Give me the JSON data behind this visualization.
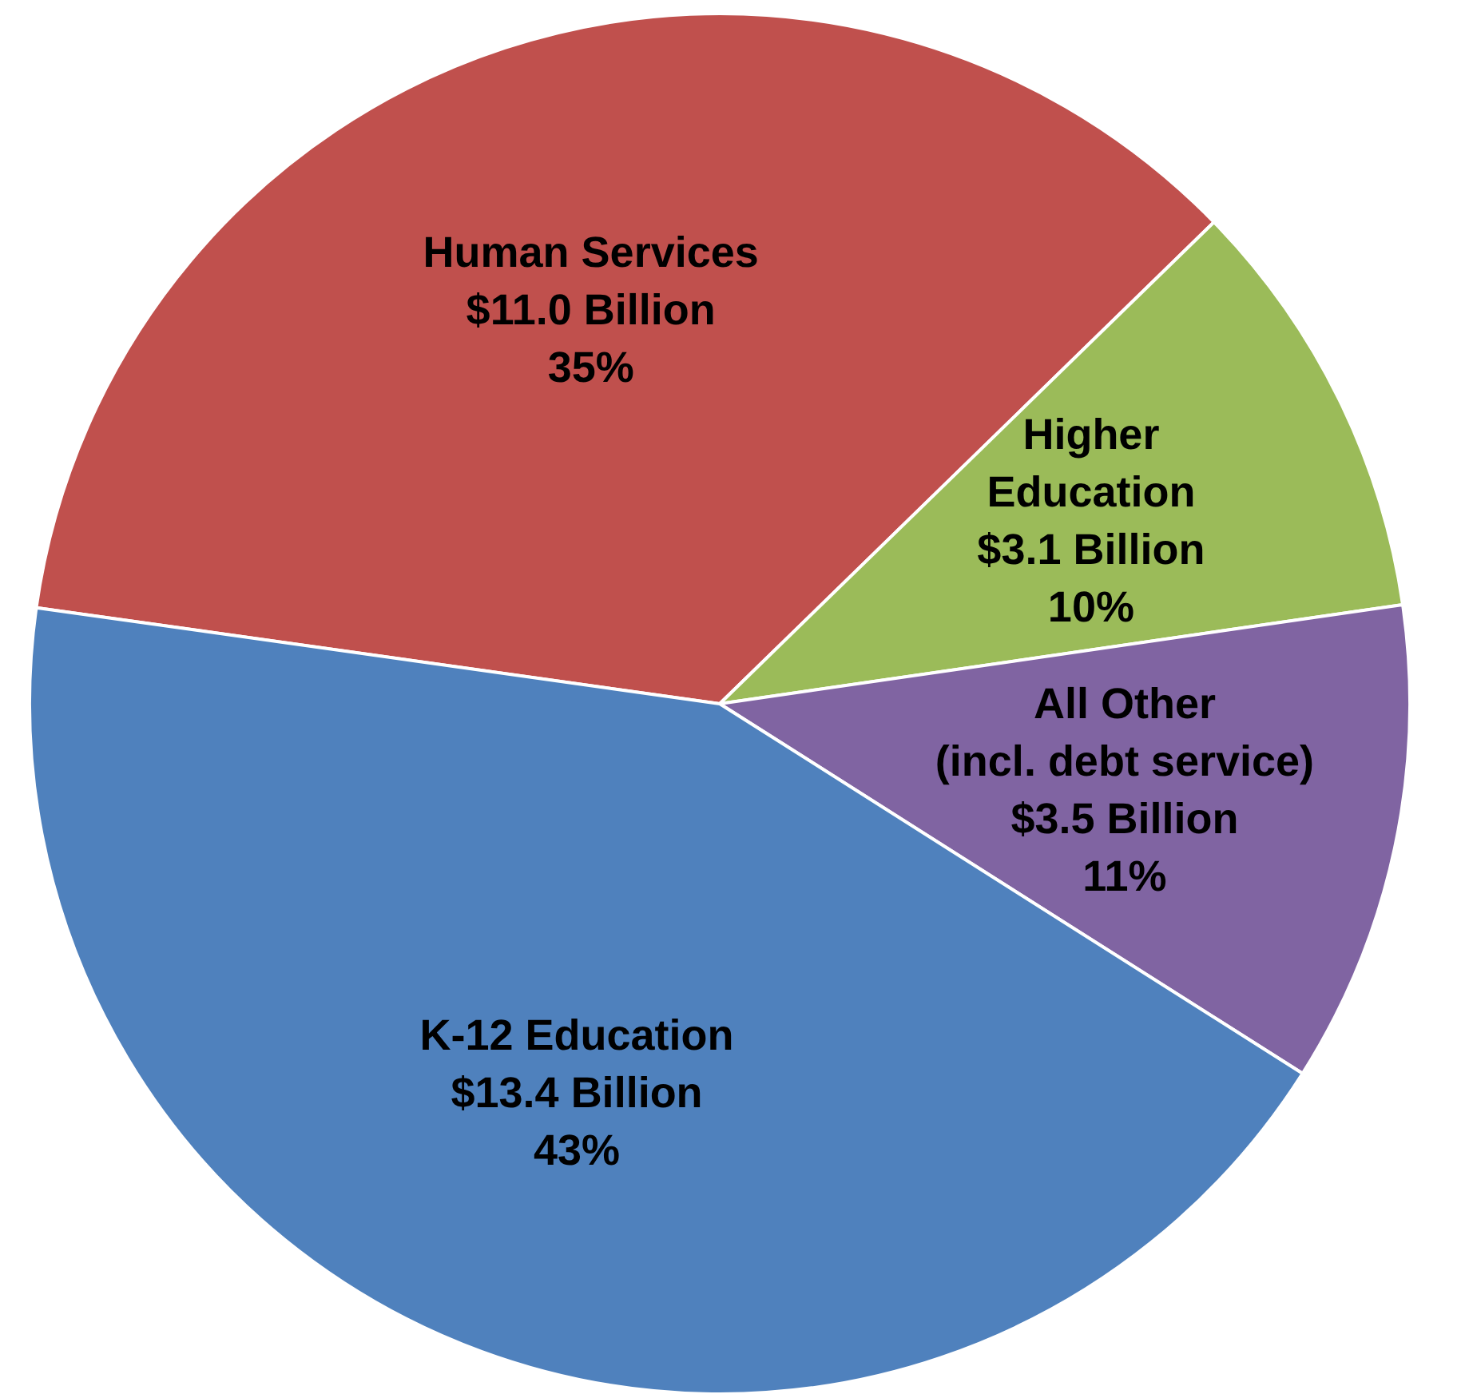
{
  "chart_data": {
    "type": "pie",
    "categories": [
      "Human Services",
      "Higher\nEducation",
      "All Other\n(incl. debt service)",
      "K-12 Education"
    ],
    "values": [
      11.0,
      3.1,
      3.5,
      13.4
    ],
    "value_labels": [
      "$11.0 Billion\n35%",
      "$3.1 Billion\n10%",
      "$3.5 Billion\n11%",
      "$13.4 Billion\n43%"
    ],
    "colors": [
      "#c0504d",
      "#9bbb59",
      "#8064a2",
      "#4f81bd"
    ]
  }
}
